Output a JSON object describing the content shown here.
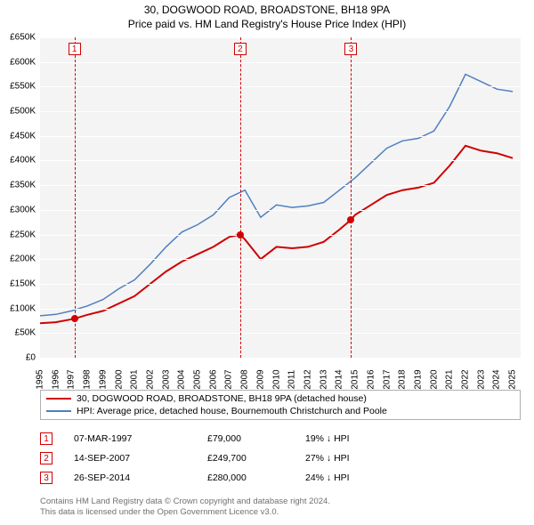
{
  "title": {
    "line1": "30, DOGWOOD ROAD, BROADSTONE, BH18 9PA",
    "line2": "Price paid vs. HM Land Registry's House Price Index (HPI)"
  },
  "chart": {
    "background": "#f4f4f4",
    "grid_color": "#ffffff",
    "x_years": [
      1995,
      1996,
      1997,
      1998,
      1999,
      2000,
      2001,
      2002,
      2003,
      2004,
      2005,
      2006,
      2007,
      2008,
      2009,
      2010,
      2011,
      2012,
      2013,
      2014,
      2015,
      2016,
      2017,
      2018,
      2019,
      2020,
      2021,
      2022,
      2023,
      2024,
      2025
    ],
    "y_ticks": [
      0,
      50000,
      100000,
      150000,
      200000,
      250000,
      300000,
      350000,
      400000,
      450000,
      500000,
      550000,
      600000,
      650000
    ],
    "y_tick_labels": [
      "£0",
      "£50K",
      "£100K",
      "£150K",
      "£200K",
      "£250K",
      "£300K",
      "£350K",
      "£400K",
      "£450K",
      "£500K",
      "£550K",
      "£600K",
      "£650K"
    ],
    "ymin": 0,
    "ymax": 650000,
    "xmin": 1995,
    "xmax": 2025.5,
    "series": [
      {
        "name": "price_paid",
        "label": "30, DOGWOOD ROAD, BROADSTONE, BH18 9PA (detached house)",
        "color": "#d00000",
        "width": 2,
        "points": [
          [
            1995,
            70000
          ],
          [
            1996,
            72000
          ],
          [
            1997.18,
            79000
          ],
          [
            1998,
            87000
          ],
          [
            1999,
            95000
          ],
          [
            2000,
            110000
          ],
          [
            2001,
            125000
          ],
          [
            2002,
            150000
          ],
          [
            2003,
            175000
          ],
          [
            2004,
            195000
          ],
          [
            2005,
            210000
          ],
          [
            2006,
            225000
          ],
          [
            2007,
            245000
          ],
          [
            2007.7,
            249700
          ],
          [
            2008,
            240000
          ],
          [
            2009,
            200000
          ],
          [
            2010,
            225000
          ],
          [
            2011,
            222000
          ],
          [
            2012,
            225000
          ],
          [
            2013,
            235000
          ],
          [
            2014,
            260000
          ],
          [
            2014.74,
            280000
          ],
          [
            2015,
            290000
          ],
          [
            2016,
            310000
          ],
          [
            2017,
            330000
          ],
          [
            2018,
            340000
          ],
          [
            2019,
            345000
          ],
          [
            2020,
            355000
          ],
          [
            2021,
            390000
          ],
          [
            2022,
            430000
          ],
          [
            2023,
            420000
          ],
          [
            2024,
            415000
          ],
          [
            2025,
            405000
          ]
        ]
      },
      {
        "name": "hpi",
        "label": "HPI: Average price, detached house, Bournemouth Christchurch and Poole",
        "color": "#5080c0",
        "width": 1.5,
        "points": [
          [
            1995,
            85000
          ],
          [
            1996,
            88000
          ],
          [
            1997,
            95000
          ],
          [
            1998,
            105000
          ],
          [
            1999,
            118000
          ],
          [
            2000,
            140000
          ],
          [
            2001,
            158000
          ],
          [
            2002,
            190000
          ],
          [
            2003,
            225000
          ],
          [
            2004,
            255000
          ],
          [
            2005,
            270000
          ],
          [
            2006,
            290000
          ],
          [
            2007,
            325000
          ],
          [
            2008,
            340000
          ],
          [
            2009,
            285000
          ],
          [
            2010,
            310000
          ],
          [
            2011,
            305000
          ],
          [
            2012,
            308000
          ],
          [
            2013,
            315000
          ],
          [
            2014,
            340000
          ],
          [
            2015,
            365000
          ],
          [
            2016,
            395000
          ],
          [
            2017,
            425000
          ],
          [
            2018,
            440000
          ],
          [
            2019,
            445000
          ],
          [
            2020,
            460000
          ],
          [
            2021,
            510000
          ],
          [
            2022,
            575000
          ],
          [
            2023,
            560000
          ],
          [
            2024,
            545000
          ],
          [
            2025,
            540000
          ]
        ]
      }
    ],
    "markers": [
      {
        "num": "1",
        "year": 1997.18,
        "value": 79000
      },
      {
        "num": "2",
        "year": 2007.7,
        "value": 249700
      },
      {
        "num": "3",
        "year": 2014.74,
        "value": 280000
      }
    ]
  },
  "legend": {
    "items": [
      {
        "color": "#d00000",
        "label": "30, DOGWOOD ROAD, BROADSTONE, BH18 9PA (detached house)"
      },
      {
        "color": "#5080c0",
        "label": "HPI: Average price, detached house, Bournemouth Christchurch and Poole"
      }
    ]
  },
  "sales": [
    {
      "num": "1",
      "date": "07-MAR-1997",
      "price": "£79,000",
      "delta": "19% ↓ HPI"
    },
    {
      "num": "2",
      "date": "14-SEP-2007",
      "price": "£249,700",
      "delta": "27% ↓ HPI"
    },
    {
      "num": "3",
      "date": "26-SEP-2014",
      "price": "£280,000",
      "delta": "24% ↓ HPI"
    }
  ],
  "footnote": {
    "line1": "Contains HM Land Registry data © Crown copyright and database right 2024.",
    "line2": "This data is licensed under the Open Government Licence v3.0."
  }
}
